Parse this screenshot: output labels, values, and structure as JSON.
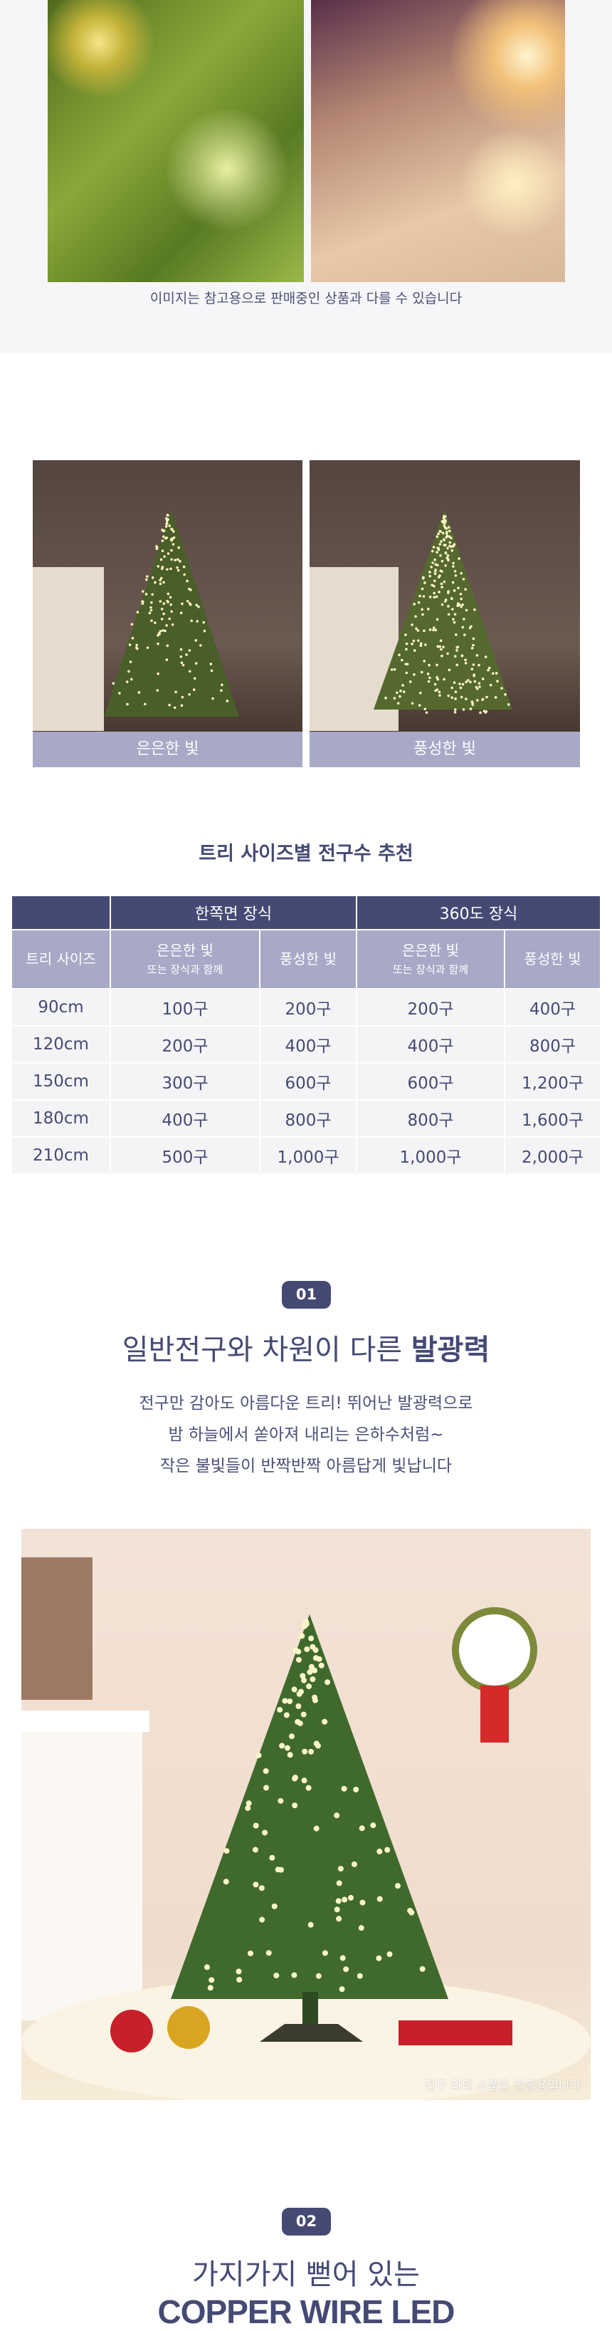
{
  "top_gallery": {
    "caption": "이미지는 참고용으로 판매중인 상품과 다를 수 있습니다"
  },
  "comparison": {
    "left_caption": "은은한 빛",
    "right_caption": "풍성한 빛"
  },
  "size_table": {
    "title": "트리 사이즈별 전구수 추천",
    "group_headers": [
      "한쪽면 장식",
      "360도 장식"
    ],
    "col_size": "트리 사이즈",
    "col_soft": "은은한 빛",
    "col_soft_sub": "또는 장식과 함께",
    "col_rich": "풍성한 빛",
    "rows": [
      {
        "size": "90cm",
        "one_soft": "100구",
        "one_rich": "200구",
        "all_soft": "200구",
        "all_rich": "400구"
      },
      {
        "size": "120cm",
        "one_soft": "200구",
        "one_rich": "400구",
        "all_soft": "400구",
        "all_rich": "800구"
      },
      {
        "size": "150cm",
        "one_soft": "300구",
        "one_rich": "600구",
        "all_soft": "600구",
        "all_rich": "1,200구"
      },
      {
        "size": "180cm",
        "one_soft": "400구",
        "one_rich": "800구",
        "all_soft": "800구",
        "all_rich": "1,600구"
      },
      {
        "size": "210cm",
        "one_soft": "500구",
        "one_rich": "1,000구",
        "all_soft": "1,000구",
        "all_rich": "2,000구"
      }
    ]
  },
  "feature1": {
    "badge": "01",
    "heading_regular": "일반전구와 차원이 다른 ",
    "heading_bold": "발광력",
    "lines": [
      "전구만 감아도 아름다운 트리! 뛰어난 발광력으로",
      "밤 하늘에서 쏟아져 내리는 은하수처럼~",
      "작은 불빛들이 반짝반짝 아름답게 빛납니다"
    ],
    "photo_note": "전구 외의 소품은 연출용입니다"
  },
  "feature2": {
    "badge": "02",
    "heading": "가지가지 뻗어 있는",
    "subheading": "COPPER WIRE LED"
  },
  "colors": {
    "accent": "#454a74",
    "header_light": "#a7a9c7",
    "row_bg": "#f4f4f6"
  }
}
